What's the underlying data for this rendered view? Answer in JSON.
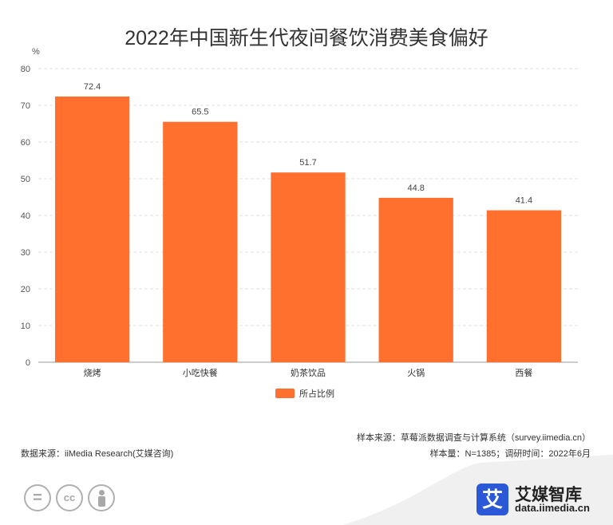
{
  "chart_data": {
    "type": "bar",
    "title": "2022年中国新生代夜间餐饮消费美食偏好",
    "ylabel": "%",
    "ylim": [
      0,
      80
    ],
    "yticks": [
      0,
      10,
      20,
      30,
      40,
      50,
      60,
      70,
      80
    ],
    "grid": true,
    "legend_position": "bottom-center",
    "categories": [
      "烧烤",
      "小吃快餐",
      "奶茶饮品",
      "火锅",
      "西餐"
    ],
    "series": [
      {
        "name": "所占比例",
        "values": [
          72.4,
          65.5,
          51.7,
          44.8,
          41.4
        ],
        "color": "#ff6f2e"
      }
    ]
  },
  "footer": {
    "sample_source": "样本来源：草莓派数据调查与计算系统（survey.iimedia.cn）",
    "data_source": "数据来源：iiMedia Research(艾媒咨询)",
    "sample_info": "样本量：N=1385；调研时间：2022年6月"
  },
  "license_icons": [
    "equal-icon",
    "cc-icon",
    "person-icon"
  ],
  "brand": {
    "logo_char": "艾",
    "name": "艾媒智库",
    "url": "data.iimedia.cn",
    "color": "#2a58d6"
  }
}
